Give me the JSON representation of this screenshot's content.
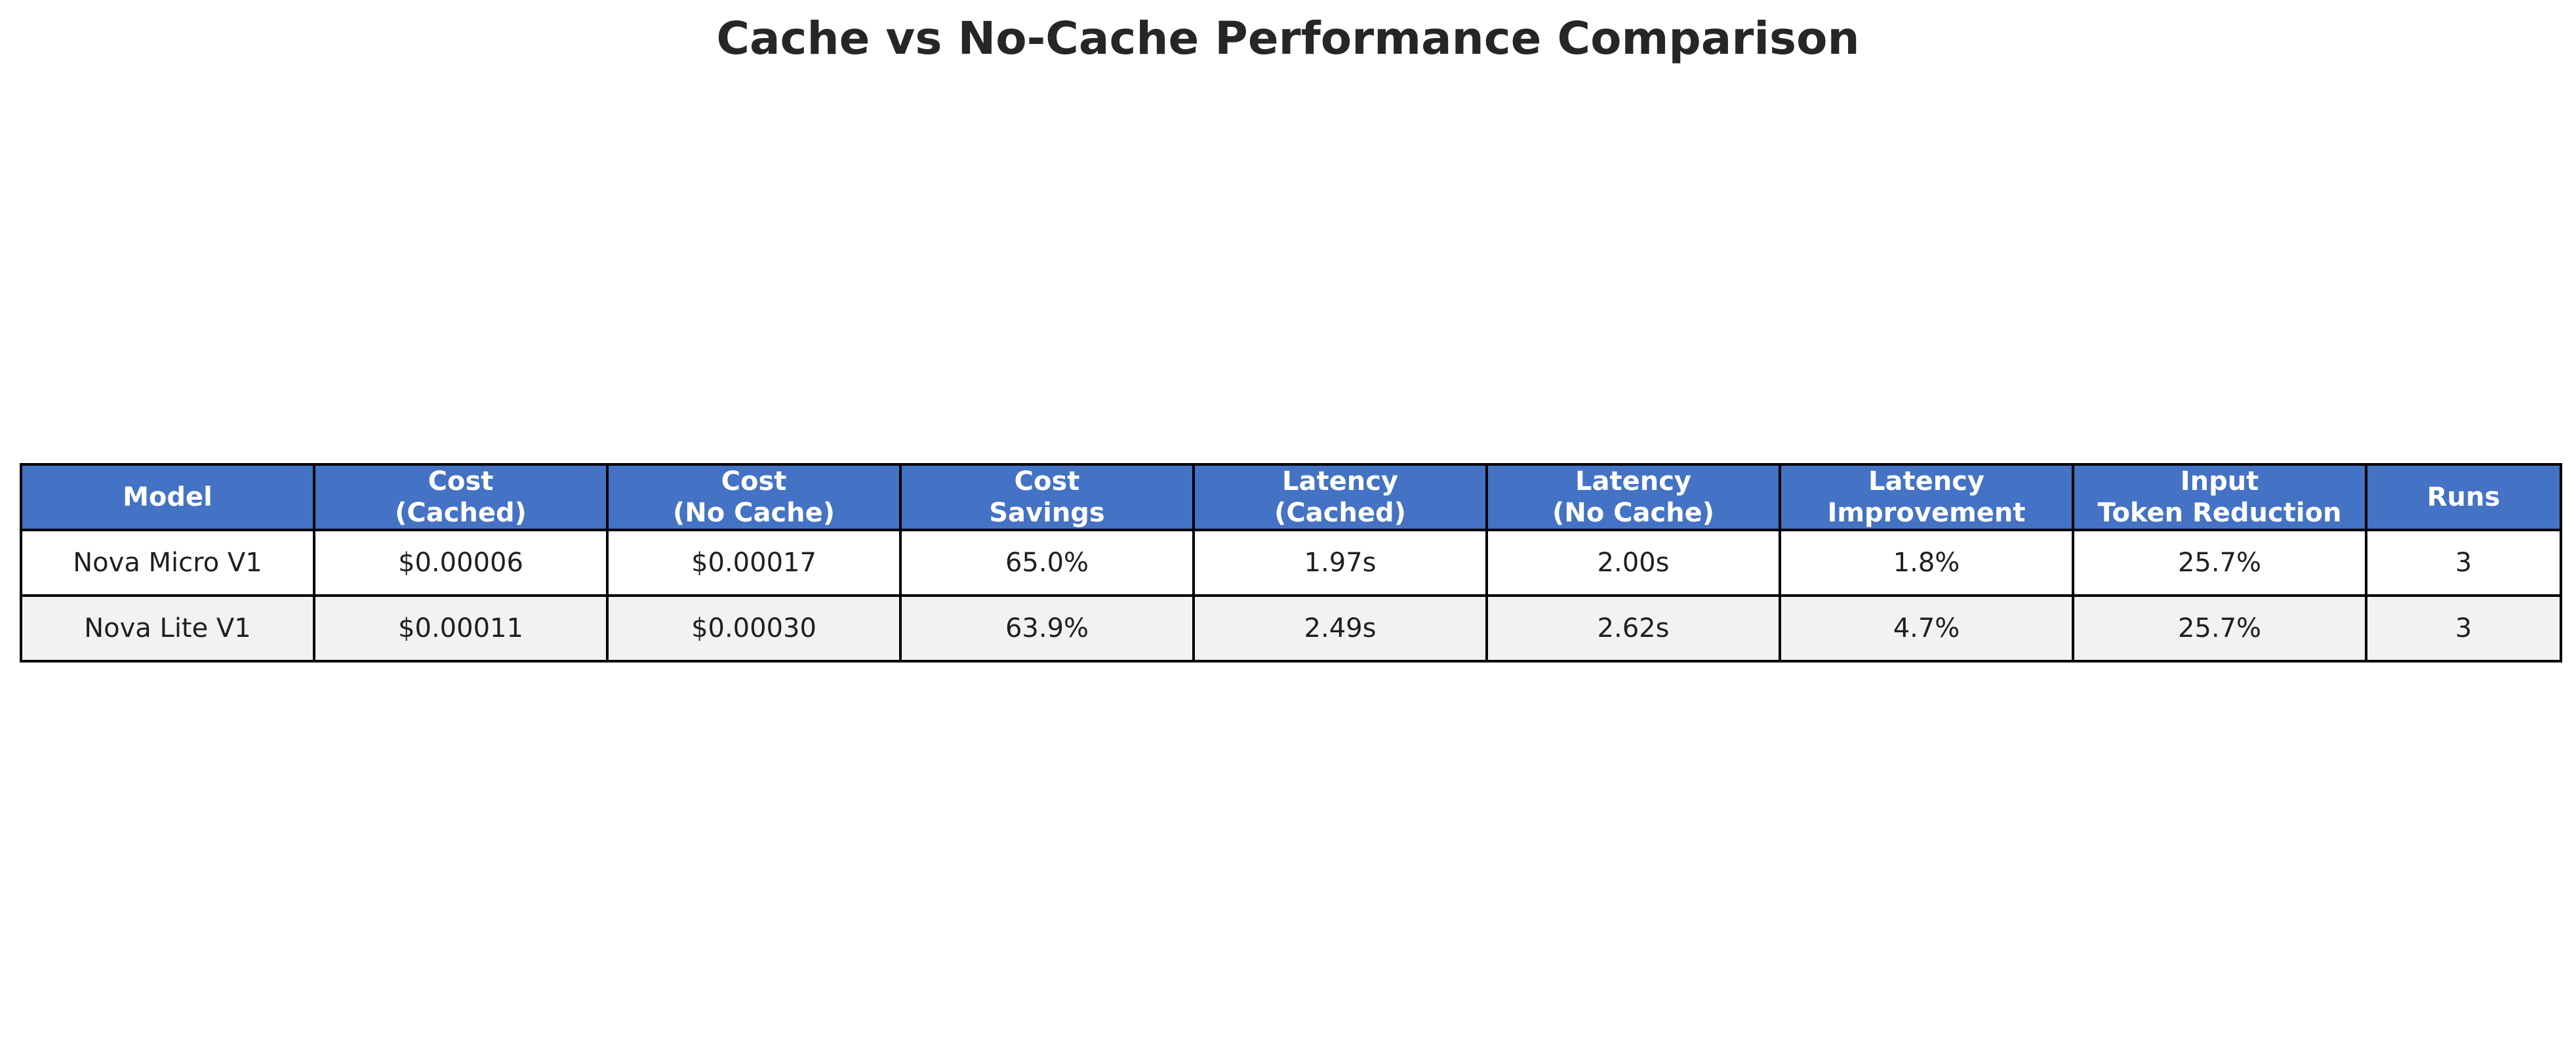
{
  "chart_data": {
    "type": "table",
    "title": "Cache vs No-Cache Performance Comparison",
    "columns": [
      [
        "Model"
      ],
      [
        "Cost",
        "(Cached)"
      ],
      [
        "Cost",
        "(No Cache)"
      ],
      [
        "Cost",
        "Savings"
      ],
      [
        "Latency",
        "(Cached)"
      ],
      [
        "Latency",
        "(No Cache)"
      ],
      [
        "Latency",
        "Improvement"
      ],
      [
        "Input",
        "Token Reduction"
      ],
      [
        "Runs"
      ]
    ],
    "rows": [
      [
        "Nova Micro V1",
        "$0.00006",
        "$0.00017",
        "65.0%",
        "1.97s",
        "2.00s",
        "1.8%",
        "25.7%",
        "3"
      ],
      [
        "Nova Lite V1",
        "$0.00011",
        "$0.00030",
        "63.9%",
        "2.49s",
        "2.62s",
        "4.7%",
        "25.7%",
        "3"
      ]
    ],
    "colors": {
      "header_bg": "#4472c4",
      "header_text": "#ffffff",
      "row_alt_bg": "#f2f2f2",
      "border": "#000000"
    }
  }
}
